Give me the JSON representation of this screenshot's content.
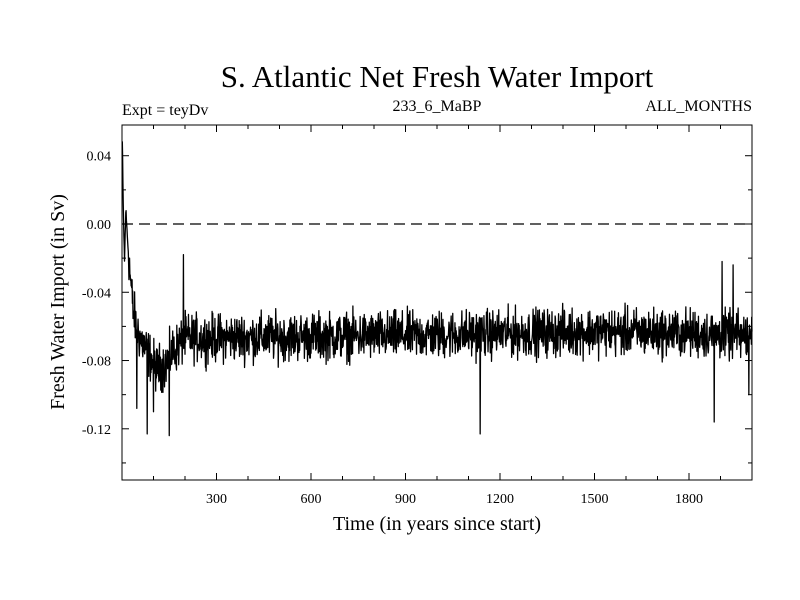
{
  "chart_data": {
    "type": "line",
    "title": "S. Atlantic Net Fresh Water Import",
    "header": {
      "left": "Expt = teyDv",
      "center": "233_6_MaBP",
      "right": "ALL_MONTHS"
    },
    "xlabel": "Time (in years since start)",
    "ylabel": "Fresh Water Import (in Sv)",
    "xlim": [
      0,
      2000
    ],
    "ylim": [
      -0.15,
      0.058
    ],
    "xticks": [
      300,
      600,
      900,
      1200,
      1500,
      1800
    ],
    "xtick_labels": [
      "300",
      "600",
      "900",
      "1200",
      "1500",
      "1800"
    ],
    "yticks": [
      0.04,
      0.0,
      -0.04,
      -0.08,
      -0.12
    ],
    "ytick_labels": [
      "0.04",
      "0.00",
      "-0.04",
      "-0.08",
      "-0.12"
    ],
    "reference_line": {
      "y": 0.0,
      "style": "dashed"
    },
    "grid": false,
    "series": [
      {
        "name": "S. Atlantic net fresh water import",
        "generated": true,
        "description": "Annual series, year 1 to 2000; starts near 0.048 Sv, drops to about -0.065 Sv within ~60 years, then fluctuates around -0.065 Sv",
        "control_points": [
          [
            1,
            0.048
          ],
          [
            4,
            0.01
          ],
          [
            8,
            -0.022
          ],
          [
            12,
            0.008
          ],
          [
            18,
            -0.01
          ],
          [
            26,
            -0.03
          ],
          [
            35,
            -0.05
          ],
          [
            45,
            -0.06
          ],
          [
            60,
            -0.068
          ],
          [
            90,
            -0.078
          ],
          [
            110,
            -0.085
          ],
          [
            140,
            -0.082
          ],
          [
            160,
            -0.075
          ],
          [
            200,
            -0.067
          ],
          [
            600,
            -0.066
          ],
          [
            1000,
            -0.065
          ],
          [
            1500,
            -0.063
          ],
          [
            1800,
            -0.064
          ],
          [
            2000,
            -0.066
          ]
        ],
        "noise_amplitude": 0.012,
        "extremes": [
          [
            47,
            -0.108
          ],
          [
            80,
            -0.123
          ],
          [
            100,
            -0.11
          ],
          [
            150,
            -0.124
          ],
          [
            195,
            -0.018
          ],
          [
            1137,
            -0.123
          ],
          [
            1880,
            -0.116
          ],
          [
            1905,
            -0.022
          ],
          [
            1940,
            -0.024
          ],
          [
            1990,
            -0.1
          ]
        ]
      }
    ],
    "colors": {
      "line": "#000000",
      "axis": "#000000",
      "background": "#ffffff"
    }
  }
}
